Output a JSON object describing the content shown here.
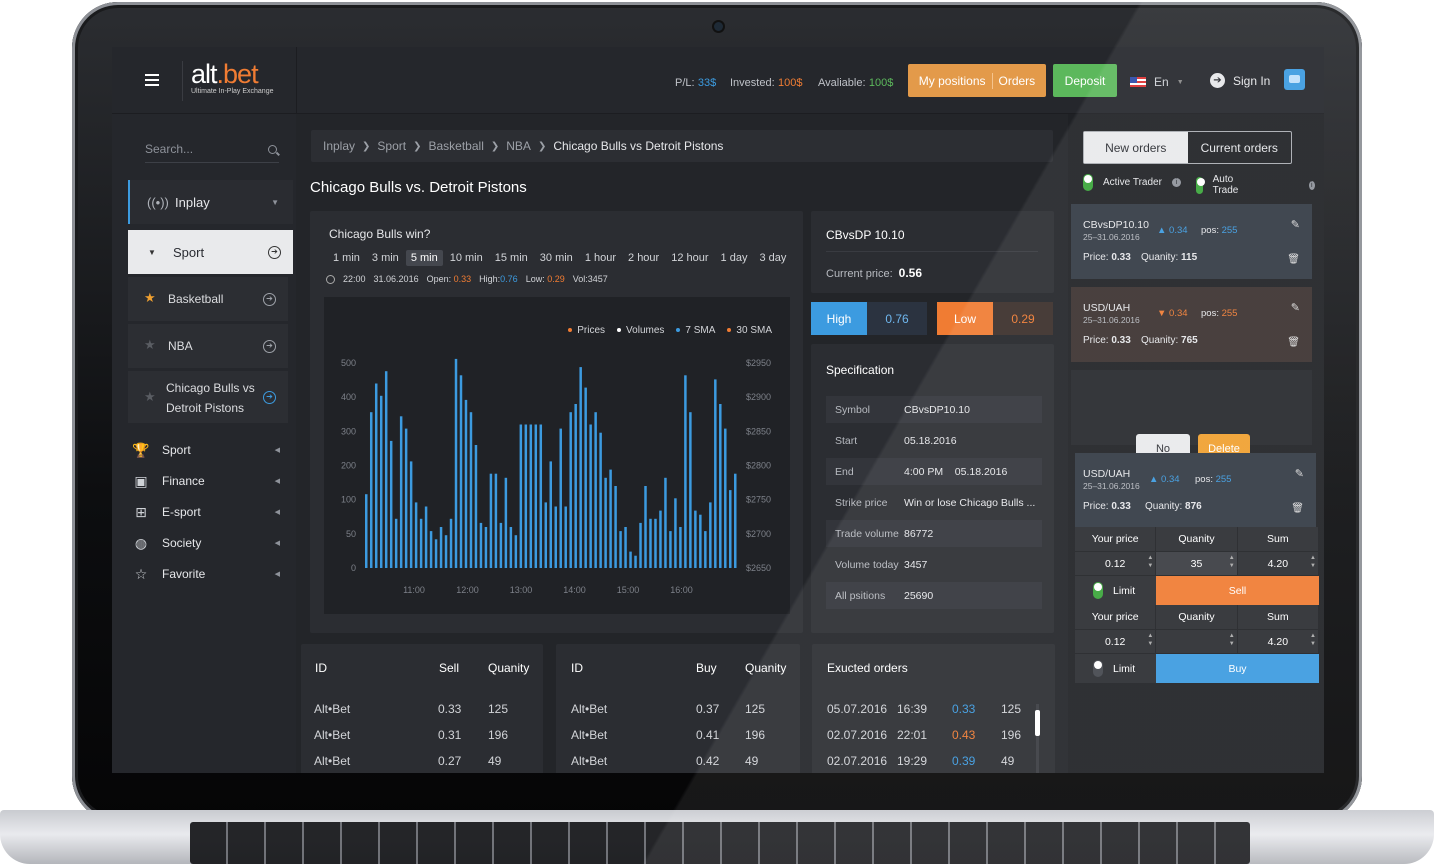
{
  "brand": {
    "name_a": "alt",
    "name_b": ".bet",
    "tagline": "Ultimate In-Play Exchange"
  },
  "colors": {
    "accent_orange": "#f07c33",
    "accent_blue": "#3c9be0",
    "green": "#5cb85c"
  },
  "header": {
    "pl_label": "P/L:",
    "pl_value": "33$",
    "invested_label": "Invested:",
    "invested_value": "100$",
    "available_label": "Avaliable:",
    "available_value": "100$",
    "positions_label": "My positions",
    "orders_label": "Orders",
    "deposit_label": "Deposit",
    "language": "En",
    "signin_label": "Sign In"
  },
  "sidebar": {
    "search_placeholder": "Search...",
    "inplay": "Inplay",
    "sport_open": "Sport",
    "sub": [
      "Basketball",
      "NBA",
      "Chicago Bulls vs",
      "Detroit Pistons"
    ],
    "categories": [
      {
        "label": "Sport",
        "icon": "trophy-icon"
      },
      {
        "label": "Finance",
        "icon": "briefcase-icon"
      },
      {
        "label": "E-sport",
        "icon": "gamepad-icon"
      },
      {
        "label": "Society",
        "icon": "globe-icon"
      },
      {
        "label": "Favorite",
        "icon": "star-icon"
      }
    ]
  },
  "breadcrumb": [
    "Inplay",
    "Sport",
    "Basketball",
    "NBA",
    "Chicago Bulls vs Detroit Pistons"
  ],
  "page_title": "Chicago Bulls vs. Detroit Pistons",
  "chart_panel": {
    "title": "Chicago Bulls win?",
    "ranges": [
      "1 min",
      "3 min",
      "5 min",
      "10 min",
      "15 min",
      "30 min",
      "1 hour",
      "2 hour",
      "12 hour",
      "1 day",
      "3 day"
    ],
    "selected_range": "5 min",
    "time": "22:00",
    "date": "31.06.2016",
    "open_label": "Open:",
    "open": "0.33",
    "high_label": "High:",
    "high": "0.76",
    "low_label": "Low:",
    "low": "0.29",
    "vol_label": "Vol:",
    "vol": "3457"
  },
  "chart_data": {
    "type": "bar",
    "legend": [
      "Prices",
      "Volumes",
      "7 SMA",
      "30 SMA"
    ],
    "legend_colors": [
      "#f07c33",
      "#ffffff",
      "#3c9be0",
      "#f07c33"
    ],
    "y_left_ticks": [
      "500",
      "400",
      "300",
      "200",
      "100",
      "50",
      "0"
    ],
    "y_right_ticks": [
      "$2950",
      "$2900",
      "$2850",
      "$2800",
      "$2750",
      "$2700",
      "$2650"
    ],
    "x_ticks": [
      "11:00",
      "12:00",
      "13:00",
      "14:00",
      "15:00",
      "16:00"
    ],
    "ylim": [
      0,
      500
    ],
    "values": [
      180,
      380,
      450,
      420,
      480,
      310,
      120,
      370,
      340,
      260,
      160,
      120,
      150,
      90,
      70,
      100,
      80,
      120,
      510,
      470,
      410,
      380,
      300,
      110,
      100,
      230,
      230,
      110,
      220,
      100,
      80,
      350,
      350,
      350,
      350,
      350,
      160,
      260,
      150,
      340,
      150,
      380,
      400,
      490,
      440,
      350,
      380,
      330,
      220,
      240,
      200,
      90,
      100,
      40,
      30,
      110,
      200,
      120,
      120,
      140,
      220,
      90,
      170,
      100,
      470,
      380,
      140,
      130,
      90,
      160,
      460,
      400,
      340,
      190,
      230
    ]
  },
  "info": {
    "symbol": "CBvsDP 10.10",
    "current_price_label": "Current price:",
    "current_price": "0.56",
    "high_label": "High",
    "high": "0.76",
    "low_label": "Low",
    "low": "0.29"
  },
  "specification": {
    "title": "Specification",
    "rows": [
      {
        "k": "Symbol",
        "v": "CBvsDP10.10"
      },
      {
        "k": "Start",
        "v": "05.18.2016"
      },
      {
        "k": "End",
        "v": "4:00 PM    05.18.2016"
      },
      {
        "k": "Strike price",
        "v": "Win or lose Chicago Bulls ..."
      },
      {
        "k": "Trade volume",
        "v": "86772"
      },
      {
        "k": "Volume today",
        "v": "3457"
      },
      {
        "k": "All psitions",
        "v": "25690"
      }
    ]
  },
  "sell_table": {
    "h": [
      "ID",
      "Sell",
      "Quanity"
    ],
    "rows": [
      [
        "Alt•Bet",
        "0.33",
        "125"
      ],
      [
        "Alt•Bet",
        "0.31",
        "196"
      ],
      [
        "Alt•Bet",
        "0.27",
        "49"
      ]
    ]
  },
  "buy_table": {
    "h": [
      "ID",
      "Buy",
      "Quanity"
    ],
    "rows": [
      [
        "Alt•Bet",
        "0.37",
        "125"
      ],
      [
        "Alt•Bet",
        "0.41",
        "196"
      ],
      [
        "Alt•Bet",
        "0.42",
        "49"
      ]
    ]
  },
  "executed": {
    "title": "Exucted orders",
    "rows": [
      [
        "05.07.2016",
        "16:39",
        "0.33",
        "125"
      ],
      [
        "02.07.2016",
        "22:01",
        "0.43",
        "196"
      ],
      [
        "02.07.2016",
        "19:29",
        "0.39",
        "49"
      ]
    ]
  },
  "right": {
    "tab_new": "New orders",
    "tab_current": "Current orders",
    "active_trader": "Active Trader",
    "auto_trade": "Auto Trade",
    "orders": [
      {
        "sym": "CBvsDP10.10",
        "dates": "25–31.06.2016",
        "change": "▲ 0.34",
        "pos_label": "pos:",
        "pos": "255",
        "price_label": "Price:",
        "price": "0.33",
        "qty_label": "Quanity:",
        "qty": "115"
      },
      {
        "sym": "USD/UAH",
        "dates": "25–31.06.2016",
        "change": "▼ 0.34",
        "pos_label": "pos:",
        "pos": "255",
        "price_label": "Price:",
        "price": "0.33",
        "qty_label": "Quanity:",
        "qty": "765"
      },
      {
        "sym": "USD/UAH",
        "dates": "25–31.06.2016",
        "change": "▲ 0.34",
        "pos_label": "pos:",
        "pos": "255",
        "price_label": "Price:",
        "price": "0.33",
        "qty_label": "Quanity:",
        "qty": "876"
      }
    ],
    "no_label": "No",
    "delete_label": "Delete",
    "form_headers": [
      "Your price",
      "Quanity",
      "Sum"
    ],
    "sell_form": {
      "price": "0.12",
      "qty": "35",
      "sum": "4.20",
      "limit": "Limit",
      "action": "Sell"
    },
    "buy_form": {
      "price": "0.12",
      "qty": "",
      "sum": "4.20",
      "limit": "Limit",
      "action": "Buy"
    }
  }
}
